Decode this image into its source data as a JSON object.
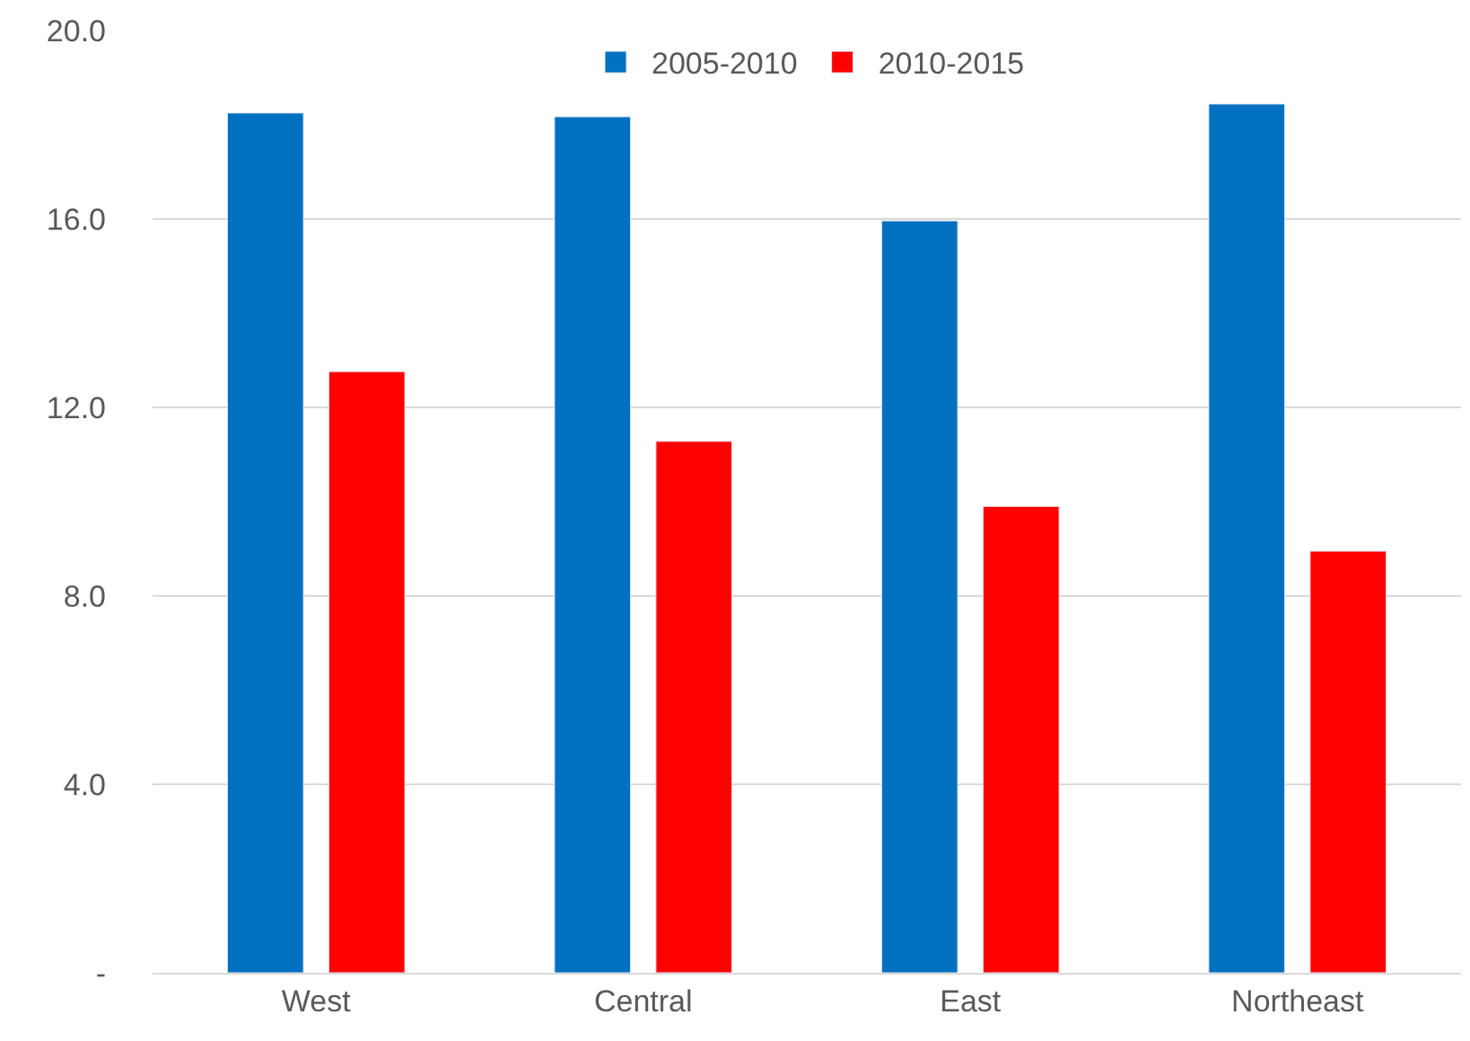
{
  "chart_data": {
    "type": "bar",
    "categories": [
      "West",
      "Central",
      "East",
      "Northeast"
    ],
    "series": [
      {
        "name": "2005-2010",
        "color": "#0070c0",
        "values": [
          18.25,
          18.17,
          15.96,
          18.44
        ]
      },
      {
        "name": "2010-2015",
        "color": "#ff0000",
        "values": [
          12.76,
          11.28,
          9.9,
          8.95
        ]
      }
    ],
    "ylim": [
      0,
      20
    ],
    "yticks": [
      {
        "value": 0,
        "label": "-"
      },
      {
        "value": 4,
        "label": "4.0"
      },
      {
        "value": 8,
        "label": "8.0"
      },
      {
        "value": 12,
        "label": "12.0"
      },
      {
        "value": 16,
        "label": "16.0"
      },
      {
        "value": 20,
        "label": "20.0"
      }
    ],
    "grid": "y",
    "legend": "top"
  }
}
